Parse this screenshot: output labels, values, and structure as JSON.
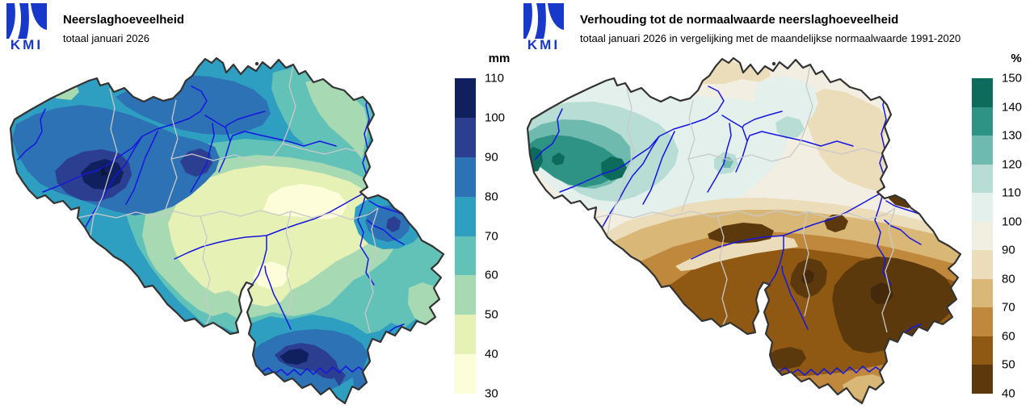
{
  "brand": {
    "name": "KMI",
    "logo_color": "#1738c8"
  },
  "left": {
    "title": "Neerslaghoeveelheid",
    "subtitle": "totaal januari 2026",
    "legend": {
      "unit": "mm",
      "ticks": [
        110,
        100,
        90,
        80,
        70,
        60,
        50,
        40,
        30
      ],
      "band_colors": [
        "#101f5e",
        "#2b3e90",
        "#2c72b4",
        "#2f9fc1",
        "#63c2b8",
        "#a7dab3",
        "#e6f1b5",
        "#fdfdd9"
      ],
      "over_color": "#0a1636"
    },
    "map": {
      "border_color": "#333333",
      "river_color": "#1616e0",
      "province_line_color": "#c9c9c9"
    }
  },
  "right": {
    "title": "Verhouding tot de normaalwaarde neerslaghoeveelheid",
    "subtitle": "totaal januari 2026 in vergelijking met de maandelijkse normaalwaarde 1991-2020",
    "legend": {
      "unit": "%",
      "ticks": [
        150,
        140,
        130,
        120,
        110,
        100,
        90,
        80,
        70,
        60,
        50,
        40
      ],
      "band_colors": [
        "#0c6b5b",
        "#2e9285",
        "#6fbaae",
        "#b7ddd4",
        "#e4f0eb",
        "#f3eee2",
        "#ebddb9",
        "#d9b877",
        "#c0883c",
        "#8f5913",
        "#5c390c"
      ],
      "under_color": "#44290a"
    },
    "map": {
      "border_color": "#333333",
      "river_color": "#1616e0",
      "province_line_color": "#c9c9c9"
    }
  }
}
